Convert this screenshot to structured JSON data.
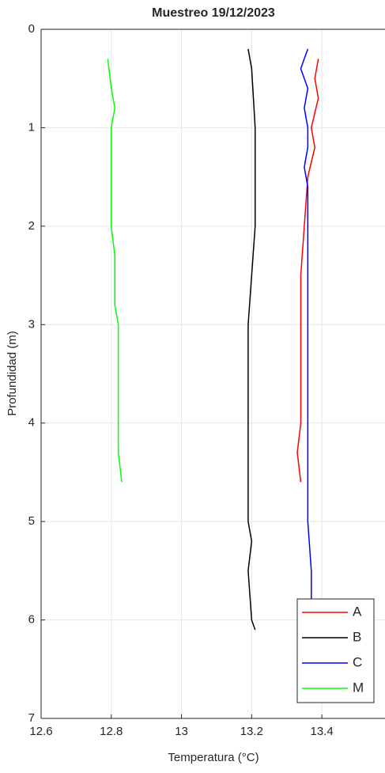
{
  "chart_data": {
    "type": "line",
    "title": "Muestreo 19/12/2023",
    "x_label": "Temperatura (°C)",
    "y_label": "Profundidad (m)",
    "xlim": [
      12.6,
      13.58
    ],
    "xticks": [
      12.6,
      12.8,
      13,
      13.2,
      13.4
    ],
    "ylim": [
      7,
      0
    ],
    "yticks": [
      0,
      1,
      2,
      3,
      4,
      5,
      6,
      7
    ],
    "y_reversed": true,
    "grid": true,
    "legend": "lower right",
    "series": [
      {
        "name": "A",
        "color": "#ff0000",
        "x": [
          13.39,
          13.38,
          13.39,
          13.37,
          13.38,
          13.36,
          13.35,
          13.34,
          13.34,
          13.34,
          13.34,
          13.33,
          13.34
        ],
        "y": [
          0.3,
          0.5,
          0.7,
          1.0,
          1.2,
          1.5,
          2.0,
          2.5,
          3.0,
          3.5,
          4.0,
          4.3,
          4.6
        ]
      },
      {
        "name": "B",
        "color": "#000000",
        "x": [
          13.19,
          13.2,
          13.21,
          13.21,
          13.21,
          13.2,
          13.19,
          13.19,
          13.19,
          13.19,
          13.19,
          13.2,
          13.19,
          13.2,
          13.21
        ],
        "y": [
          0.2,
          0.4,
          1.0,
          1.5,
          2.0,
          2.5,
          3.0,
          3.5,
          4.0,
          4.5,
          5.0,
          5.2,
          5.5,
          6.0,
          6.1
        ]
      },
      {
        "name": "C",
        "color": "#0000ff",
        "x": [
          13.36,
          13.34,
          13.36,
          13.35,
          13.36,
          13.36,
          13.35,
          13.36,
          13.36,
          13.36,
          13.36,
          13.36,
          13.36,
          13.36,
          13.36,
          13.37,
          13.37
        ],
        "y": [
          0.2,
          0.4,
          0.6,
          0.8,
          1.0,
          1.2,
          1.4,
          1.6,
          2.0,
          2.5,
          3.0,
          3.5,
          4.0,
          4.5,
          5.0,
          5.5,
          5.8
        ]
      },
      {
        "name": "M",
        "color": "#00ff00",
        "x": [
          12.79,
          12.8,
          12.81,
          12.8,
          12.8,
          12.8,
          12.81,
          12.81,
          12.82,
          12.82,
          12.82,
          12.82,
          12.82,
          12.83
        ],
        "y": [
          0.3,
          0.6,
          0.8,
          1.0,
          1.5,
          2.0,
          2.3,
          2.8,
          3.0,
          3.5,
          3.6,
          4.0,
          4.3,
          4.6
        ]
      }
    ]
  }
}
